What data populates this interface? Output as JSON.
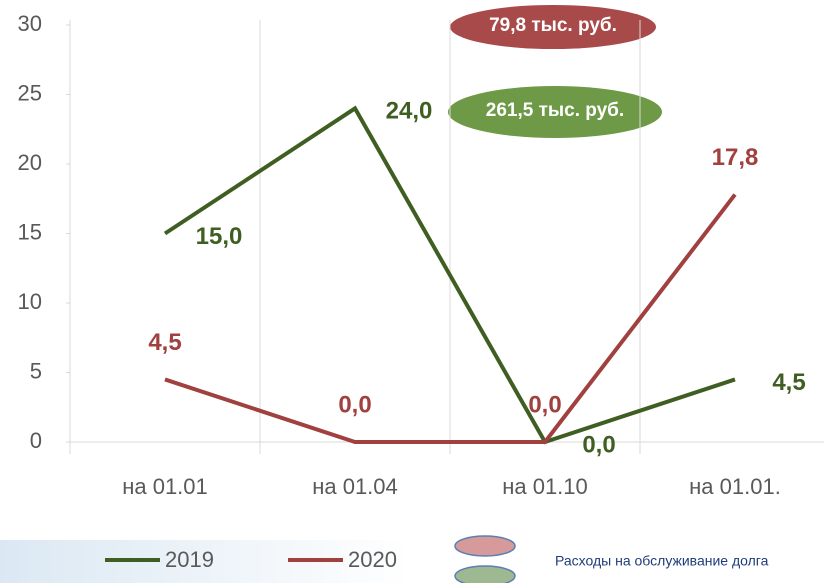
{
  "chart_data": {
    "type": "line",
    "categories": [
      "на 01.01",
      "на 01.04",
      "на 01.10",
      "на 01.01."
    ],
    "series": [
      {
        "name": "2019",
        "color": "#3f5e22",
        "values": [
          15,
          24,
          0,
          4.5
        ],
        "value_labels": [
          "15,0",
          "24,0",
          "0,0",
          "4,5"
        ]
      },
      {
        "name": "2020",
        "color": "#a0403f",
        "values": [
          4.5,
          0,
          0,
          17.8
        ],
        "value_labels": [
          "4,5",
          "0,0",
          "0,0",
          "17,8"
        ]
      }
    ],
    "ylim": [
      0,
      30
    ],
    "yticks": [
      0,
      5,
      10,
      15,
      20,
      25,
      30
    ],
    "annotations": [
      "79,8  тыс. руб.",
      "261,5 тыс. руб."
    ],
    "legend_note": "Расходы на обслуживание долга"
  }
}
